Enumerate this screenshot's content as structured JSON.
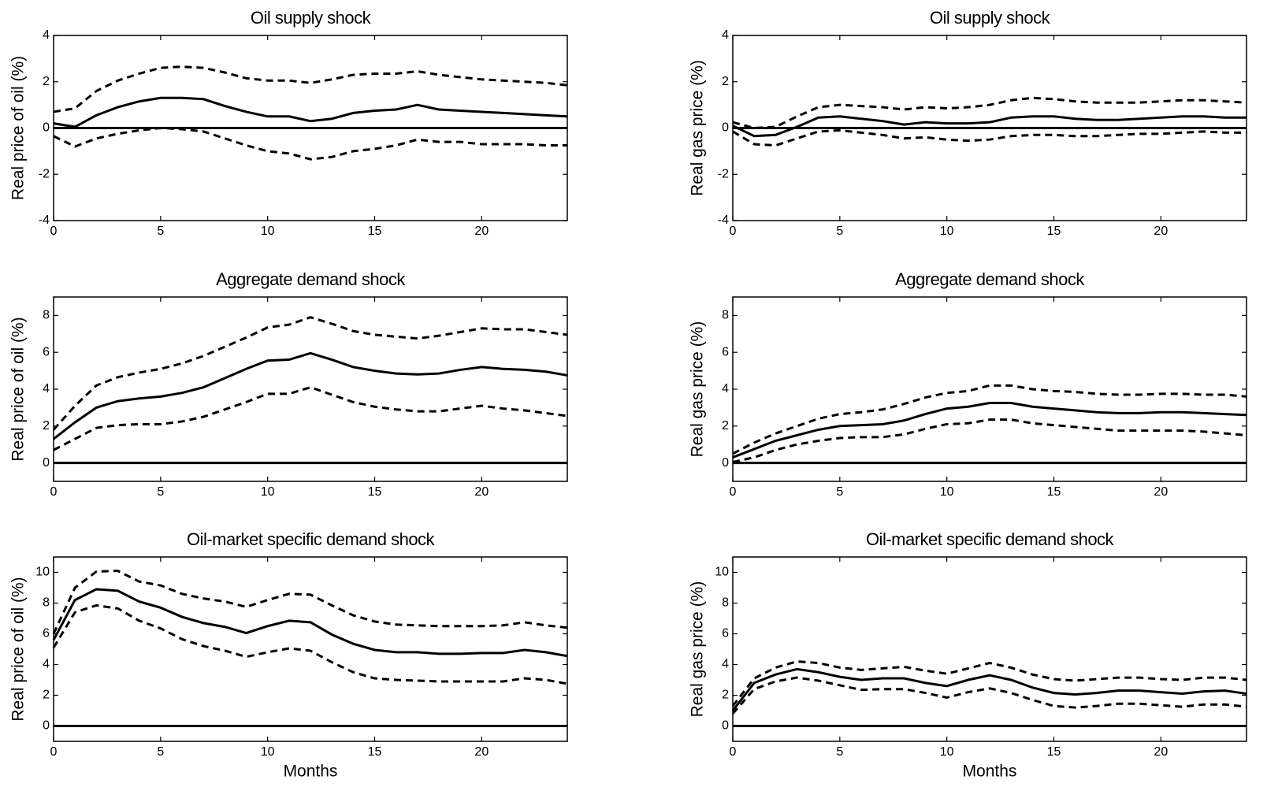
{
  "chart_data": [
    {
      "type": "line",
      "title": "Oil supply shock",
      "ylabel": "Real price of oil (%)",
      "x": [
        0,
        1,
        2,
        3,
        4,
        5,
        6,
        7,
        8,
        9,
        10,
        11,
        12,
        13,
        14,
        15,
        16,
        17,
        18,
        19,
        20,
        21,
        22,
        23,
        24
      ],
      "xlim": [
        0,
        24
      ],
      "xticks": [
        0,
        5,
        10,
        15,
        20
      ],
      "ylim": [
        -4,
        4
      ],
      "yticks": [
        -4,
        -2,
        0,
        2,
        4
      ],
      "hline": 0,
      "series": [
        {
          "color": "#000000",
          "dash": "solid",
          "values": [
            0.2,
            0.05,
            0.55,
            0.9,
            1.15,
            1.3,
            1.3,
            1.25,
            0.95,
            0.7,
            0.5,
            0.5,
            0.3,
            0.4,
            0.65,
            0.75,
            0.8,
            1.0,
            0.8,
            0.75,
            0.7,
            0.65,
            0.6,
            0.55,
            0.5
          ]
        },
        {
          "color": "#000000",
          "dash": "dashed",
          "values": [
            0.7,
            0.85,
            1.6,
            2.05,
            2.35,
            2.6,
            2.65,
            2.6,
            2.4,
            2.15,
            2.05,
            2.05,
            1.95,
            2.1,
            2.3,
            2.35,
            2.35,
            2.45,
            2.3,
            2.2,
            2.1,
            2.05,
            2.0,
            1.95,
            1.85
          ]
        },
        {
          "color": "#000000",
          "dash": "dashed",
          "values": [
            -0.35,
            -0.8,
            -0.45,
            -0.25,
            -0.1,
            0,
            -0.05,
            -0.15,
            -0.45,
            -0.75,
            -1.0,
            -1.1,
            -1.35,
            -1.25,
            -1.0,
            -0.9,
            -0.75,
            -0.5,
            -0.6,
            -0.6,
            -0.7,
            -0.7,
            -0.7,
            -0.75,
            -0.75
          ]
        }
      ]
    },
    {
      "type": "line",
      "title": "Oil supply shock",
      "ylabel": "Real gas price (%)",
      "x": [
        0,
        1,
        2,
        3,
        4,
        5,
        6,
        7,
        8,
        9,
        10,
        11,
        12,
        13,
        14,
        15,
        16,
        17,
        18,
        19,
        20,
        21,
        22,
        23,
        24
      ],
      "xlim": [
        0,
        24
      ],
      "xticks": [
        0,
        5,
        10,
        15,
        20
      ],
      "ylim": [
        -4,
        4
      ],
      "yticks": [
        -4,
        -2,
        0,
        2,
        4
      ],
      "hline": 0,
      "series": [
        {
          "color": "#000000",
          "dash": "solid",
          "values": [
            0.1,
            -0.35,
            -0.3,
            0.05,
            0.45,
            0.5,
            0.4,
            0.3,
            0.15,
            0.25,
            0.2,
            0.2,
            0.25,
            0.45,
            0.5,
            0.5,
            0.4,
            0.35,
            0.35,
            0.4,
            0.45,
            0.5,
            0.5,
            0.45,
            0.45
          ]
        },
        {
          "color": "#000000",
          "dash": "dashed",
          "values": [
            0.25,
            0.0,
            0.05,
            0.5,
            0.9,
            1.0,
            0.95,
            0.9,
            0.8,
            0.9,
            0.85,
            0.9,
            1.0,
            1.2,
            1.3,
            1.25,
            1.15,
            1.1,
            1.1,
            1.1,
            1.15,
            1.2,
            1.2,
            1.15,
            1.1
          ]
        },
        {
          "color": "#000000",
          "dash": "dashed",
          "values": [
            -0.15,
            -0.7,
            -0.75,
            -0.45,
            -0.15,
            -0.1,
            -0.2,
            -0.3,
            -0.45,
            -0.4,
            -0.5,
            -0.55,
            -0.5,
            -0.35,
            -0.3,
            -0.3,
            -0.35,
            -0.35,
            -0.3,
            -0.25,
            -0.25,
            -0.2,
            -0.15,
            -0.2,
            -0.2
          ]
        }
      ]
    },
    {
      "type": "line",
      "title": "Aggregate demand shock",
      "ylabel": "Real price of oil (%)",
      "x": [
        0,
        1,
        2,
        3,
        4,
        5,
        6,
        7,
        8,
        9,
        10,
        11,
        12,
        13,
        14,
        15,
        16,
        17,
        18,
        19,
        20,
        21,
        22,
        23,
        24
      ],
      "xlim": [
        0,
        24
      ],
      "xticks": [
        0,
        5,
        10,
        15,
        20
      ],
      "ylim": [
        -1,
        9
      ],
      "yticks": [
        0,
        2,
        4,
        6,
        8
      ],
      "hline": 0,
      "series": [
        {
          "color": "#000000",
          "dash": "solid",
          "values": [
            1.3,
            2.2,
            3.0,
            3.35,
            3.5,
            3.6,
            3.8,
            4.1,
            4.6,
            5.1,
            5.55,
            5.6,
            5.95,
            5.6,
            5.2,
            5.0,
            4.85,
            4.8,
            4.85,
            5.05,
            5.2,
            5.1,
            5.05,
            4.95,
            4.75
          ]
        },
        {
          "color": "#000000",
          "dash": "dashed",
          "values": [
            1.8,
            3.1,
            4.2,
            4.65,
            4.9,
            5.1,
            5.4,
            5.8,
            6.3,
            6.8,
            7.35,
            7.5,
            7.9,
            7.55,
            7.15,
            6.95,
            6.85,
            6.75,
            6.9,
            7.1,
            7.3,
            7.25,
            7.25,
            7.1,
            6.95
          ]
        },
        {
          "color": "#000000",
          "dash": "dashed",
          "values": [
            0.7,
            1.3,
            1.9,
            2.05,
            2.1,
            2.1,
            2.25,
            2.5,
            2.9,
            3.3,
            3.75,
            3.75,
            4.1,
            3.7,
            3.3,
            3.05,
            2.9,
            2.8,
            2.8,
            2.95,
            3.1,
            2.95,
            2.85,
            2.7,
            2.55
          ]
        }
      ]
    },
    {
      "type": "line",
      "title": "Aggregate demand shock",
      "ylabel": "Real gas price (%)",
      "x": [
        0,
        1,
        2,
        3,
        4,
        5,
        6,
        7,
        8,
        9,
        10,
        11,
        12,
        13,
        14,
        15,
        16,
        17,
        18,
        19,
        20,
        21,
        22,
        23,
        24
      ],
      "xlim": [
        0,
        24
      ],
      "xticks": [
        0,
        5,
        10,
        15,
        20
      ],
      "ylim": [
        -1,
        9
      ],
      "yticks": [
        0,
        2,
        4,
        6,
        8
      ],
      "hline": 0,
      "series": [
        {
          "color": "#000000",
          "dash": "solid",
          "values": [
            0.3,
            0.75,
            1.2,
            1.5,
            1.8,
            2.0,
            2.05,
            2.1,
            2.3,
            2.65,
            2.95,
            3.05,
            3.25,
            3.25,
            3.05,
            2.95,
            2.85,
            2.75,
            2.7,
            2.7,
            2.75,
            2.75,
            2.7,
            2.65,
            2.6
          ]
        },
        {
          "color": "#000000",
          "dash": "dashed",
          "values": [
            0.5,
            1.1,
            1.6,
            2.0,
            2.4,
            2.65,
            2.75,
            2.9,
            3.2,
            3.55,
            3.8,
            3.9,
            4.2,
            4.2,
            4.0,
            3.9,
            3.85,
            3.75,
            3.7,
            3.7,
            3.75,
            3.75,
            3.7,
            3.7,
            3.6
          ]
        },
        {
          "color": "#000000",
          "dash": "dashed",
          "values": [
            0.05,
            0.3,
            0.7,
            1.0,
            1.2,
            1.35,
            1.4,
            1.4,
            1.55,
            1.85,
            2.1,
            2.15,
            2.35,
            2.35,
            2.15,
            2.05,
            1.95,
            1.85,
            1.75,
            1.75,
            1.75,
            1.75,
            1.7,
            1.6,
            1.5
          ]
        }
      ]
    },
    {
      "type": "line",
      "title": "Oil-market specific demand shock",
      "ylabel": "Real price of oil (%)",
      "xlabel": "Months",
      "x": [
        0,
        1,
        2,
        3,
        4,
        5,
        6,
        7,
        8,
        9,
        10,
        11,
        12,
        13,
        14,
        15,
        16,
        17,
        18,
        19,
        20,
        21,
        22,
        23,
        24
      ],
      "xlim": [
        0,
        24
      ],
      "xticks": [
        0,
        5,
        10,
        15,
        20
      ],
      "ylim": [
        -1,
        11
      ],
      "yticks": [
        0,
        2,
        4,
        6,
        8,
        10
      ],
      "hline": 0,
      "series": [
        {
          "color": "#000000",
          "dash": "solid",
          "values": [
            5.6,
            8.2,
            8.9,
            8.8,
            8.1,
            7.7,
            7.1,
            6.7,
            6.45,
            6.05,
            6.5,
            6.85,
            6.75,
            5.95,
            5.35,
            4.95,
            4.8,
            4.8,
            4.7,
            4.7,
            4.75,
            4.75,
            4.95,
            4.8,
            4.55
          ]
        },
        {
          "color": "#000000",
          "dash": "dashed",
          "values": [
            6.0,
            9.0,
            10.05,
            10.1,
            9.4,
            9.15,
            8.6,
            8.3,
            8.1,
            7.75,
            8.2,
            8.6,
            8.55,
            7.85,
            7.2,
            6.8,
            6.6,
            6.55,
            6.5,
            6.5,
            6.5,
            6.55,
            6.75,
            6.55,
            6.4
          ]
        },
        {
          "color": "#000000",
          "dash": "dashed",
          "values": [
            5.1,
            7.4,
            7.85,
            7.65,
            6.85,
            6.35,
            5.65,
            5.2,
            4.9,
            4.5,
            4.8,
            5.05,
            4.9,
            4.15,
            3.5,
            3.1,
            3.0,
            2.95,
            2.9,
            2.9,
            2.9,
            2.9,
            3.1,
            3.0,
            2.75
          ]
        }
      ]
    },
    {
      "type": "line",
      "title": "Oil-market specific demand shock",
      "ylabel": "Real gas price (%)",
      "xlabel": "Months",
      "x": [
        0,
        1,
        2,
        3,
        4,
        5,
        6,
        7,
        8,
        9,
        10,
        11,
        12,
        13,
        14,
        15,
        16,
        17,
        18,
        19,
        20,
        21,
        22,
        23,
        24
      ],
      "xlim": [
        0,
        24
      ],
      "xticks": [
        0,
        5,
        10,
        15,
        20
      ],
      "ylim": [
        -1,
        11
      ],
      "yticks": [
        0,
        2,
        4,
        6,
        8,
        10
      ],
      "hline": 0,
      "series": [
        {
          "color": "#000000",
          "dash": "solid",
          "values": [
            1.0,
            2.8,
            3.35,
            3.7,
            3.5,
            3.2,
            3.0,
            3.1,
            3.1,
            2.8,
            2.6,
            3.0,
            3.3,
            3.0,
            2.5,
            2.15,
            2.05,
            2.15,
            2.3,
            2.3,
            2.2,
            2.1,
            2.25,
            2.3,
            2.1
          ]
        },
        {
          "color": "#000000",
          "dash": "dashed",
          "values": [
            1.3,
            3.1,
            3.8,
            4.2,
            4.1,
            3.8,
            3.65,
            3.75,
            3.85,
            3.6,
            3.4,
            3.75,
            4.1,
            3.8,
            3.35,
            3.05,
            2.95,
            3.05,
            3.15,
            3.15,
            3.05,
            3.0,
            3.15,
            3.15,
            3.0
          ]
        },
        {
          "color": "#000000",
          "dash": "dashed",
          "values": [
            0.8,
            2.4,
            2.9,
            3.15,
            2.95,
            2.65,
            2.35,
            2.4,
            2.4,
            2.15,
            1.85,
            2.2,
            2.45,
            2.15,
            1.7,
            1.3,
            1.2,
            1.3,
            1.45,
            1.45,
            1.35,
            1.25,
            1.4,
            1.4,
            1.25
          ]
        }
      ]
    }
  ]
}
